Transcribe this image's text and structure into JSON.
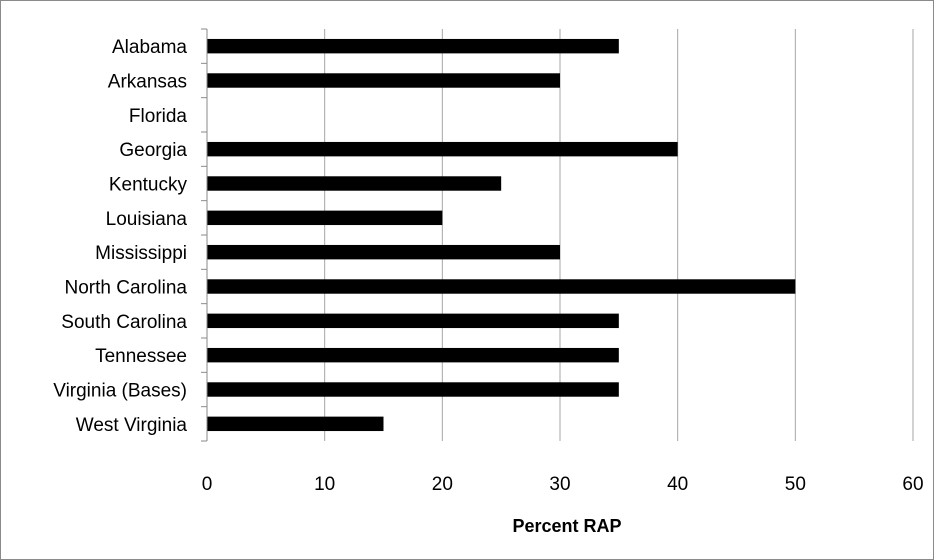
{
  "chart_data": {
    "type": "bar",
    "orientation": "horizontal",
    "categories": [
      "Alabama",
      "Arkansas",
      "Florida",
      "Georgia",
      "Kentucky",
      "Louisiana",
      "Mississippi",
      "North Carolina",
      "South Carolina",
      "Tennessee",
      "Virginia (Bases)",
      "West Virginia"
    ],
    "values": [
      35,
      30,
      0,
      40,
      25,
      20,
      30,
      50,
      35,
      35,
      35,
      15
    ],
    "title": "",
    "xlabel": "Percent RAP",
    "ylabel": "",
    "xlim": [
      0,
      60
    ],
    "xticks": [
      0,
      10,
      20,
      30,
      40,
      50,
      60
    ],
    "grid": "vertical",
    "legend": "none",
    "bar_color": "#000000",
    "grid_color": "#a6a6a6"
  }
}
